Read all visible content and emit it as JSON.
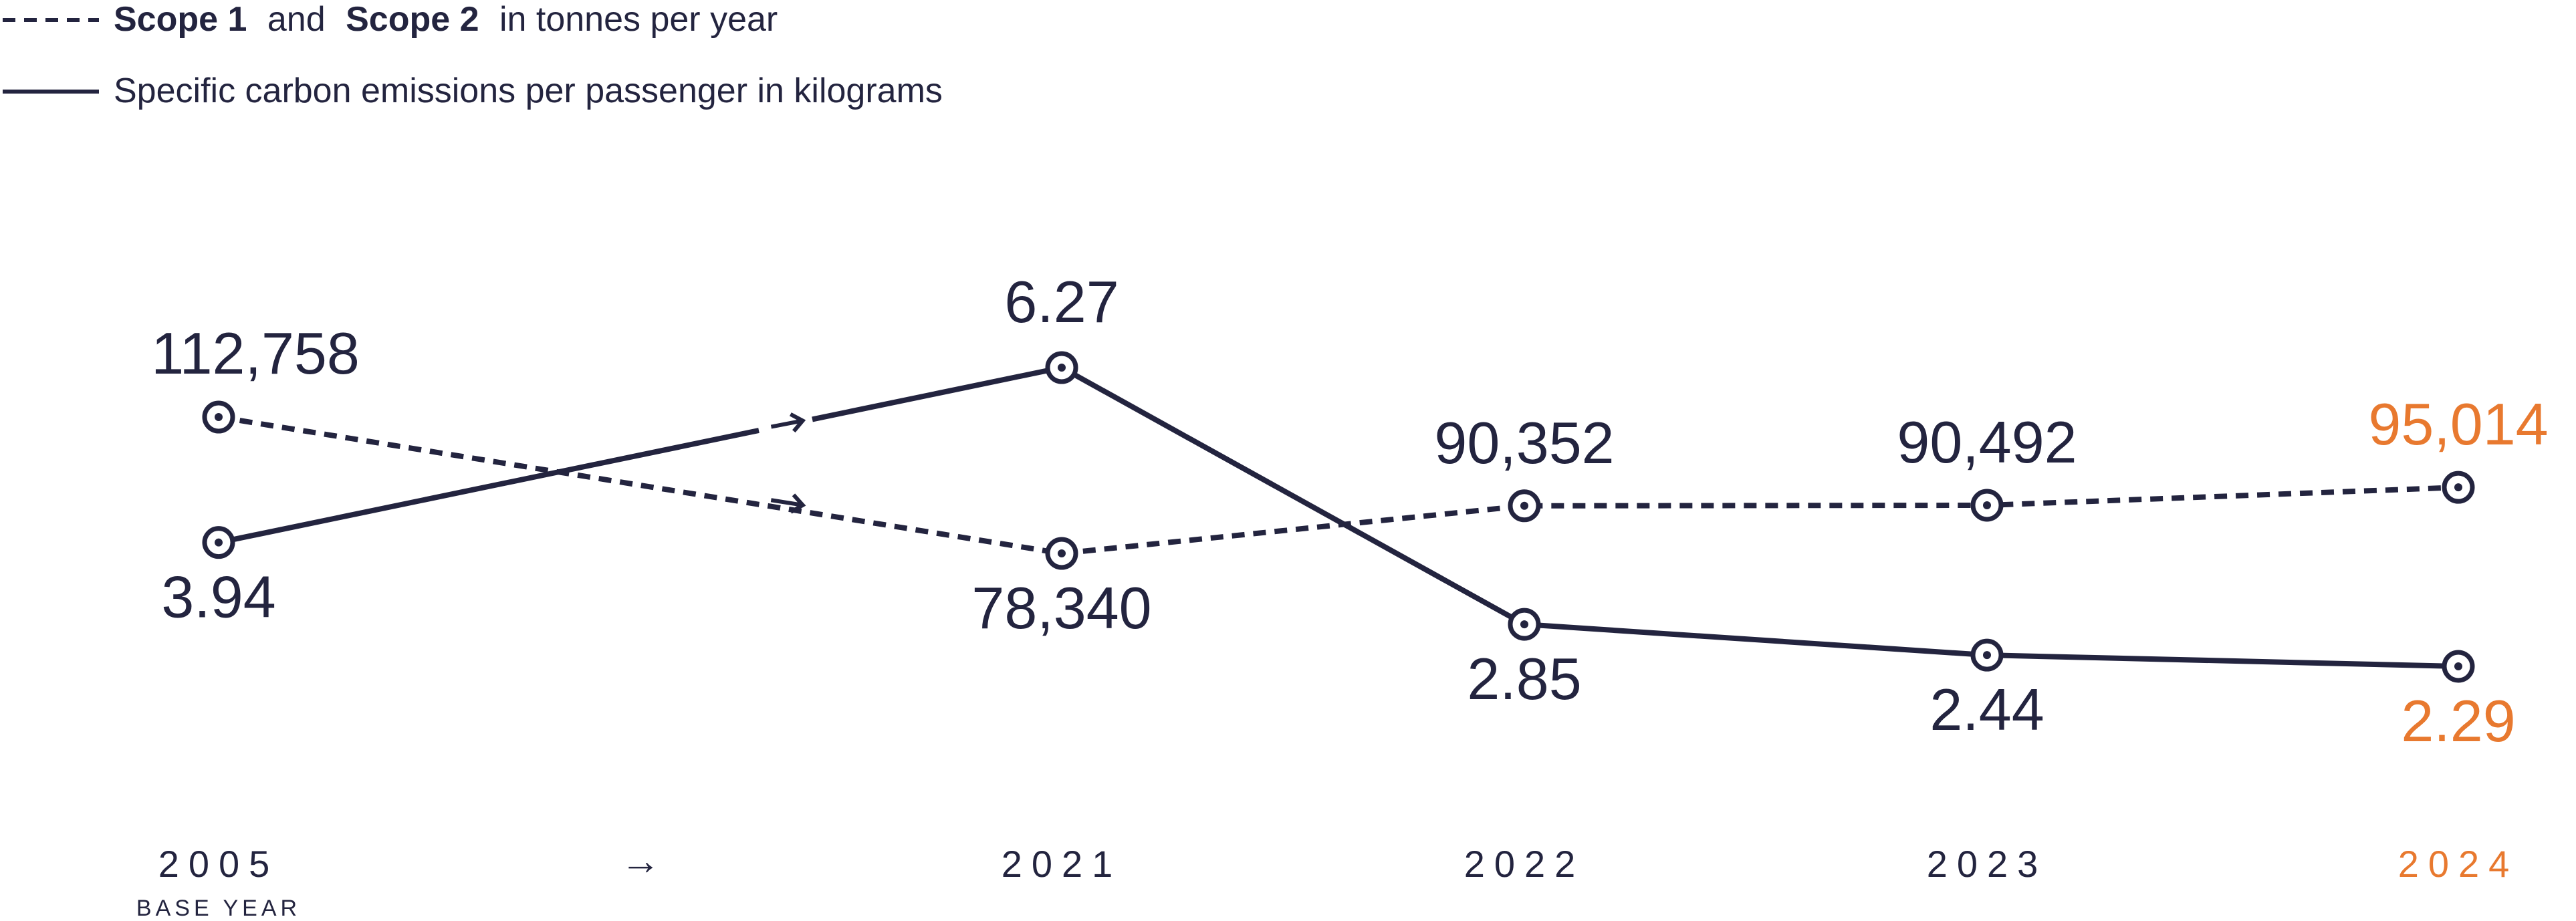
{
  "colors": {
    "navy": "#23243f",
    "highlight": "#e8792f",
    "background": "#ffffff"
  },
  "legend": {
    "placement": "top-left",
    "dashed": {
      "bold1": "Scope 1",
      "mid": "and",
      "bold2": "Scope 2",
      "rest": "in tonnes per year"
    },
    "solid": {
      "label": "Specific carbon emissions per passenger in kilograms"
    }
  },
  "gap_arrow": "→",
  "chart_data": {
    "type": "line",
    "title": "",
    "xlabel": "",
    "ylabel": "",
    "grid": false,
    "x": [
      {
        "year": "2005",
        "sub": "BASE YEAR",
        "highlight": false
      },
      {
        "year": "2021",
        "sub": "",
        "highlight": false
      },
      {
        "year": "2022",
        "sub": "",
        "highlight": false
      },
      {
        "year": "2023",
        "sub": "",
        "highlight": false
      },
      {
        "year": "2024",
        "sub": "",
        "highlight": true
      }
    ],
    "series": [
      {
        "name": "Scope 1 and Scope 2 in tonnes per year",
        "style": "dashed",
        "values": [
          112758,
          78340,
          90352,
          90492,
          95014
        ],
        "labels": [
          "112,758",
          "78,340",
          "90,352",
          "90,492",
          "95,014"
        ]
      },
      {
        "name": "Specific carbon emissions per passenger in kilograms",
        "style": "solid",
        "values": [
          3.94,
          6.27,
          2.85,
          2.44,
          2.29
        ],
        "labels": [
          "3.94",
          "6.27",
          "2.85",
          "2.44",
          "2.29"
        ]
      }
    ]
  }
}
